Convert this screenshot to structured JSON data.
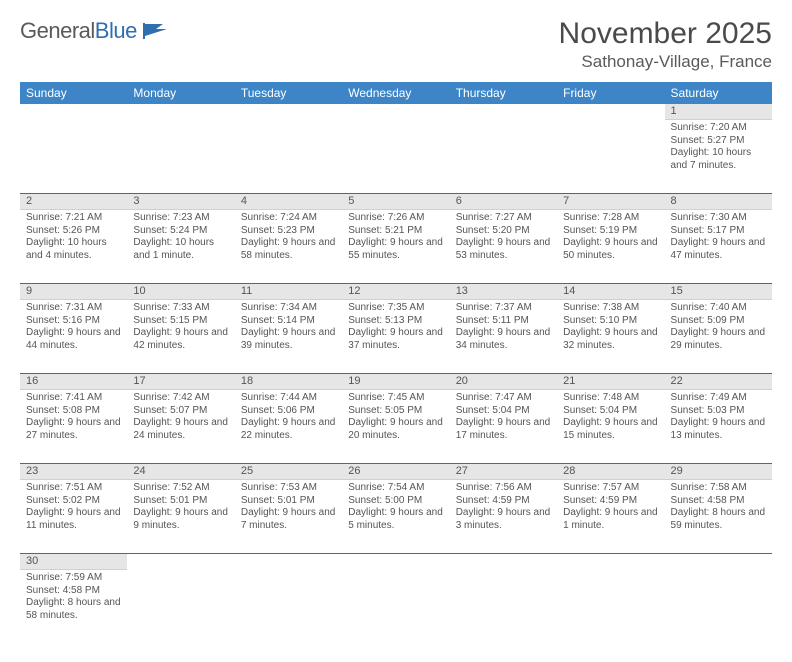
{
  "logo": {
    "text1": "General",
    "text2": "Blue"
  },
  "title": "November 2025",
  "location": "Sathonay-Village, France",
  "colors": {
    "header_bg": "#3d85c6",
    "header_text": "#ffffff",
    "daynum_bg": "#e6e6e6",
    "rule": "#2f6fb0",
    "body_text": "#555555"
  },
  "daynames": [
    "Sunday",
    "Monday",
    "Tuesday",
    "Wednesday",
    "Thursday",
    "Friday",
    "Saturday"
  ],
  "weeks": [
    [
      null,
      null,
      null,
      null,
      null,
      null,
      {
        "n": "1",
        "sr": "7:20 AM",
        "ss": "5:27 PM",
        "dl": "10 hours and 7 minutes."
      }
    ],
    [
      {
        "n": "2",
        "sr": "7:21 AM",
        "ss": "5:26 PM",
        "dl": "10 hours and 4 minutes."
      },
      {
        "n": "3",
        "sr": "7:23 AM",
        "ss": "5:24 PM",
        "dl": "10 hours and 1 minute."
      },
      {
        "n": "4",
        "sr": "7:24 AM",
        "ss": "5:23 PM",
        "dl": "9 hours and 58 minutes."
      },
      {
        "n": "5",
        "sr": "7:26 AM",
        "ss": "5:21 PM",
        "dl": "9 hours and 55 minutes."
      },
      {
        "n": "6",
        "sr": "7:27 AM",
        "ss": "5:20 PM",
        "dl": "9 hours and 53 minutes."
      },
      {
        "n": "7",
        "sr": "7:28 AM",
        "ss": "5:19 PM",
        "dl": "9 hours and 50 minutes."
      },
      {
        "n": "8",
        "sr": "7:30 AM",
        "ss": "5:17 PM",
        "dl": "9 hours and 47 minutes."
      }
    ],
    [
      {
        "n": "9",
        "sr": "7:31 AM",
        "ss": "5:16 PM",
        "dl": "9 hours and 44 minutes."
      },
      {
        "n": "10",
        "sr": "7:33 AM",
        "ss": "5:15 PM",
        "dl": "9 hours and 42 minutes."
      },
      {
        "n": "11",
        "sr": "7:34 AM",
        "ss": "5:14 PM",
        "dl": "9 hours and 39 minutes."
      },
      {
        "n": "12",
        "sr": "7:35 AM",
        "ss": "5:13 PM",
        "dl": "9 hours and 37 minutes."
      },
      {
        "n": "13",
        "sr": "7:37 AM",
        "ss": "5:11 PM",
        "dl": "9 hours and 34 minutes."
      },
      {
        "n": "14",
        "sr": "7:38 AM",
        "ss": "5:10 PM",
        "dl": "9 hours and 32 minutes."
      },
      {
        "n": "15",
        "sr": "7:40 AM",
        "ss": "5:09 PM",
        "dl": "9 hours and 29 minutes."
      }
    ],
    [
      {
        "n": "16",
        "sr": "7:41 AM",
        "ss": "5:08 PM",
        "dl": "9 hours and 27 minutes."
      },
      {
        "n": "17",
        "sr": "7:42 AM",
        "ss": "5:07 PM",
        "dl": "9 hours and 24 minutes."
      },
      {
        "n": "18",
        "sr": "7:44 AM",
        "ss": "5:06 PM",
        "dl": "9 hours and 22 minutes."
      },
      {
        "n": "19",
        "sr": "7:45 AM",
        "ss": "5:05 PM",
        "dl": "9 hours and 20 minutes."
      },
      {
        "n": "20",
        "sr": "7:47 AM",
        "ss": "5:04 PM",
        "dl": "9 hours and 17 minutes."
      },
      {
        "n": "21",
        "sr": "7:48 AM",
        "ss": "5:04 PM",
        "dl": "9 hours and 15 minutes."
      },
      {
        "n": "22",
        "sr": "7:49 AM",
        "ss": "5:03 PM",
        "dl": "9 hours and 13 minutes."
      }
    ],
    [
      {
        "n": "23",
        "sr": "7:51 AM",
        "ss": "5:02 PM",
        "dl": "9 hours and 11 minutes."
      },
      {
        "n": "24",
        "sr": "7:52 AM",
        "ss": "5:01 PM",
        "dl": "9 hours and 9 minutes."
      },
      {
        "n": "25",
        "sr": "7:53 AM",
        "ss": "5:01 PM",
        "dl": "9 hours and 7 minutes."
      },
      {
        "n": "26",
        "sr": "7:54 AM",
        "ss": "5:00 PM",
        "dl": "9 hours and 5 minutes."
      },
      {
        "n": "27",
        "sr": "7:56 AM",
        "ss": "4:59 PM",
        "dl": "9 hours and 3 minutes."
      },
      {
        "n": "28",
        "sr": "7:57 AM",
        "ss": "4:59 PM",
        "dl": "9 hours and 1 minute."
      },
      {
        "n": "29",
        "sr": "7:58 AM",
        "ss": "4:58 PM",
        "dl": "8 hours and 59 minutes."
      }
    ],
    [
      {
        "n": "30",
        "sr": "7:59 AM",
        "ss": "4:58 PM",
        "dl": "8 hours and 58 minutes."
      },
      null,
      null,
      null,
      null,
      null,
      null
    ]
  ],
  "labels": {
    "sunrise": "Sunrise: ",
    "sunset": "Sunset: ",
    "daylight": "Daylight: "
  }
}
